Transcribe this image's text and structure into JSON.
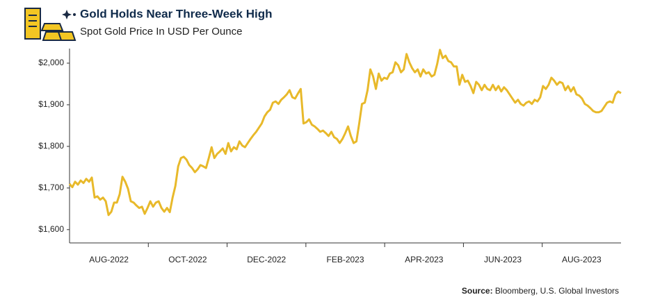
{
  "chart_data": {
    "type": "line",
    "title": "Gold Holds Near Three-Week High",
    "subtitle": "Spot Gold Price In USD Per Ounce",
    "source_label": "Source:",
    "source": "Bloomberg, U.S. Global Investors",
    "x_axis_labels": [
      "AUG-2022",
      "OCT-2022",
      "DEC-2022",
      "FEB-2023",
      "APR-2023",
      "JUN-2023",
      "AUG-2023"
    ],
    "color": "#e8b92a",
    "ylim": [
      1568,
      2035
    ],
    "yticks": [
      {
        "value": 1600,
        "label": "$1,600"
      },
      {
        "value": 1700,
        "label": "$1,700"
      },
      {
        "value": 1800,
        "label": "$1,800"
      },
      {
        "value": 1900,
        "label": "$1,900"
      },
      {
        "value": 2000,
        "label": "$2,000"
      }
    ],
    "grid": false,
    "values": [
      1710,
      1702,
      1715,
      1708,
      1718,
      1712,
      1722,
      1715,
      1725,
      1677,
      1680,
      1672,
      1677,
      1668,
      1635,
      1643,
      1665,
      1665,
      1685,
      1727,
      1715,
      1698,
      1668,
      1665,
      1658,
      1652,
      1655,
      1638,
      1652,
      1668,
      1655,
      1665,
      1668,
      1652,
      1643,
      1652,
      1642,
      1677,
      1705,
      1752,
      1772,
      1775,
      1768,
      1755,
      1748,
      1738,
      1745,
      1755,
      1752,
      1748,
      1772,
      1798,
      1772,
      1782,
      1788,
      1795,
      1782,
      1808,
      1788,
      1798,
      1793,
      1812,
      1802,
      1798,
      1808,
      1818,
      1827,
      1835,
      1845,
      1855,
      1872,
      1882,
      1888,
      1905,
      1908,
      1902,
      1912,
      1918,
      1925,
      1935,
      1918,
      1915,
      1927,
      1938,
      1855,
      1858,
      1865,
      1852,
      1848,
      1842,
      1835,
      1838,
      1832,
      1825,
      1835,
      1822,
      1818,
      1808,
      1818,
      1832,
      1848,
      1825,
      1808,
      1812,
      1855,
      1902,
      1905,
      1935,
      1985,
      1968,
      1938,
      1975,
      1958,
      1965,
      1962,
      1975,
      1978,
      2002,
      1995,
      1978,
      1985,
      2022,
      2002,
      1988,
      1978,
      1985,
      1968,
      1985,
      1975,
      1978,
      1968,
      1972,
      1998,
      2032,
      2012,
      2018,
      2005,
      2002,
      1992,
      1992,
      1948,
      1972,
      1955,
      1958,
      1945,
      1928,
      1955,
      1948,
      1935,
      1948,
      1938,
      1935,
      1948,
      1935,
      1945,
      1932,
      1942,
      1935,
      1925,
      1915,
      1905,
      1912,
      1902,
      1898,
      1905,
      1908,
      1902,
      1912,
      1908,
      1918,
      1945,
      1938,
      1948,
      1965,
      1958,
      1948,
      1955,
      1952,
      1935,
      1945,
      1932,
      1942,
      1925,
      1922,
      1915,
      1902,
      1898,
      1892,
      1885,
      1882,
      1882,
      1885,
      1895,
      1905,
      1908,
      1905,
      1925,
      1932,
      1928
    ]
  }
}
